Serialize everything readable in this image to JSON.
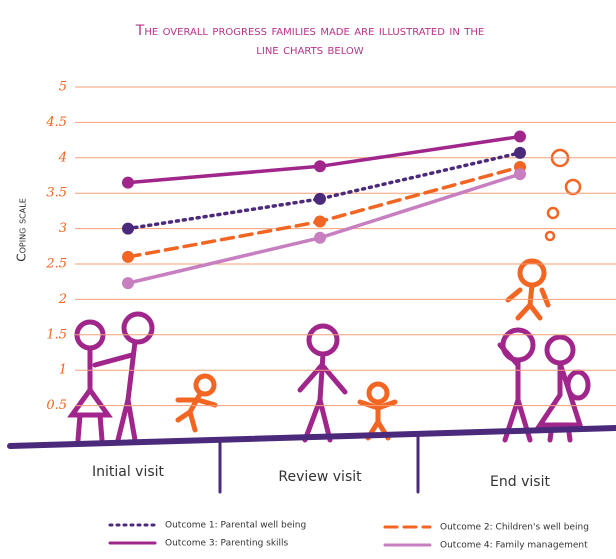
{
  "chart_data": {
    "type": "line",
    "title": "The overall progress families made are illustrated in the line charts below",
    "y_label": "Coping scale",
    "categories": [
      "Initial visit",
      "Review visit",
      "End visit"
    ],
    "ylim": [
      0,
      5
    ],
    "yticks": [
      0.5,
      1,
      1.5,
      2,
      2.5,
      3,
      3.5,
      4,
      4.5,
      5
    ],
    "grid": true,
    "series": [
      {
        "name": "Outcome 1: Parental well being",
        "color": "#4b2a7b",
        "style": "dotted",
        "values": [
          3.0,
          3.42,
          4.07
        ]
      },
      {
        "name": "Outcome 2: Children's well being",
        "color": "#f26522",
        "style": "dashed",
        "values": [
          2.6,
          3.1,
          3.87
        ]
      },
      {
        "name": "Outcome 3: Parenting skills",
        "color": "#a0268c",
        "style": "solid",
        "values": [
          3.65,
          3.88,
          4.3
        ]
      },
      {
        "name": "Outcome 4: Family management",
        "color": "#c77fc0",
        "style": "solid",
        "values": [
          2.23,
          2.87,
          3.77
        ]
      }
    ]
  }
}
